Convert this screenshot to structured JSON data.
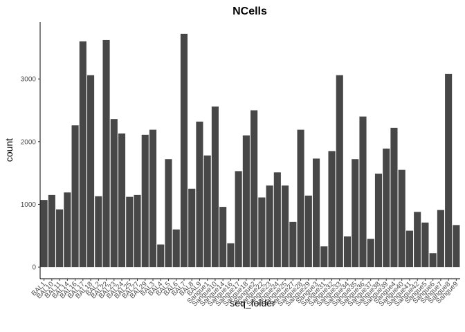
{
  "chart_data": {
    "type": "bar",
    "title": "NCells",
    "x_label": "seq_folder",
    "y_label": "count",
    "categories": [
      "BAL1",
      "BAL10",
      "BAL11",
      "BAL14",
      "BAL16",
      "BAL17",
      "BAL18",
      "BAL2",
      "BAL22",
      "BAL23",
      "BAL24",
      "BAL25",
      "BAL27",
      "BAL29",
      "BAL3",
      "BAL4",
      "BAL5",
      "BAL6",
      "BAL7",
      "BAL8",
      "BAL9",
      "Sangue1",
      "Sangue10",
      "Sangue14",
      "Sangue16",
      "Sangue17",
      "Sangue18",
      "Sangue2",
      "Sangue22",
      "Sangue23",
      "Sangue24",
      "Sangue25",
      "Sangue27",
      "Sangue28",
      "Sangue29",
      "Sangue3",
      "Sangue31",
      "Sangue32",
      "Sangue33",
      "Sangue34",
      "Sangue35",
      "Sangue36",
      "Sangue37",
      "Sangue38",
      "Sangue39",
      "Sangue4",
      "Sangue40",
      "Sangue41",
      "Sangue42",
      "Sangue5",
      "Sangue6",
      "Sangue7",
      "Sangue8",
      "Sangue9"
    ],
    "values": [
      1070,
      1150,
      920,
      1190,
      2260,
      3600,
      3060,
      1130,
      3620,
      2360,
      2130,
      1120,
      1150,
      2110,
      2190,
      360,
      1720,
      600,
      3720,
      1250,
      2320,
      1780,
      2560,
      960,
      380,
      1530,
      2100,
      2500,
      1110,
      1300,
      1510,
      1300,
      720,
      2190,
      1140,
      1730,
      330,
      1850,
      3060,
      490,
      1720,
      2400,
      450,
      1490,
      1890,
      2220,
      1550,
      580,
      880,
      710,
      220,
      910,
      3080,
      670
    ],
    "color": "#474747",
    "ylim": [
      -186,
      3906
    ],
    "yticks": [
      0,
      1000,
      2000,
      3000
    ],
    "grid": false
  }
}
